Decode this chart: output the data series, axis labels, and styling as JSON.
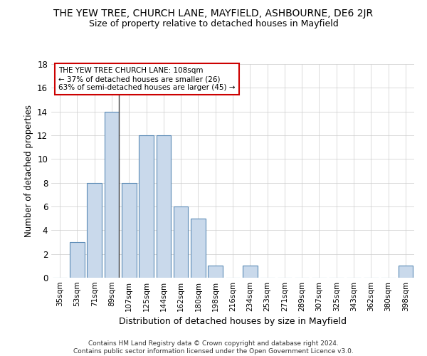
{
  "title": "THE YEW TREE, CHURCH LANE, MAYFIELD, ASHBOURNE, DE6 2JR",
  "subtitle": "Size of property relative to detached houses in Mayfield",
  "xlabel": "Distribution of detached houses by size in Mayfield",
  "ylabel": "Number of detached properties",
  "categories": [
    "35sqm",
    "53sqm",
    "71sqm",
    "89sqm",
    "107sqm",
    "125sqm",
    "144sqm",
    "162sqm",
    "180sqm",
    "198sqm",
    "216sqm",
    "234sqm",
    "253sqm",
    "271sqm",
    "289sqm",
    "307sqm",
    "325sqm",
    "343sqm",
    "362sqm",
    "380sqm",
    "398sqm"
  ],
  "values": [
    0,
    3,
    8,
    14,
    8,
    12,
    12,
    6,
    5,
    1,
    0,
    1,
    0,
    0,
    0,
    0,
    0,
    0,
    0,
    0,
    1
  ],
  "bar_color": "#c9d9eb",
  "bar_edge_color": "#5b8ab5",
  "highlight_line_index": 3,
  "highlight_line_color": "#444444",
  "ylim": [
    0,
    18
  ],
  "yticks": [
    0,
    2,
    4,
    6,
    8,
    10,
    12,
    14,
    16,
    18
  ],
  "annotation_text": "THE YEW TREE CHURCH LANE: 108sqm\n← 37% of detached houses are smaller (26)\n63% of semi-detached houses are larger (45) →",
  "annotation_box_color": "#ffffff",
  "annotation_box_edge": "#cc0000",
  "footer_line1": "Contains HM Land Registry data © Crown copyright and database right 2024.",
  "footer_line2": "Contains public sector information licensed under the Open Government Licence v3.0.",
  "background_color": "#ffffff",
  "grid_color": "#cccccc"
}
